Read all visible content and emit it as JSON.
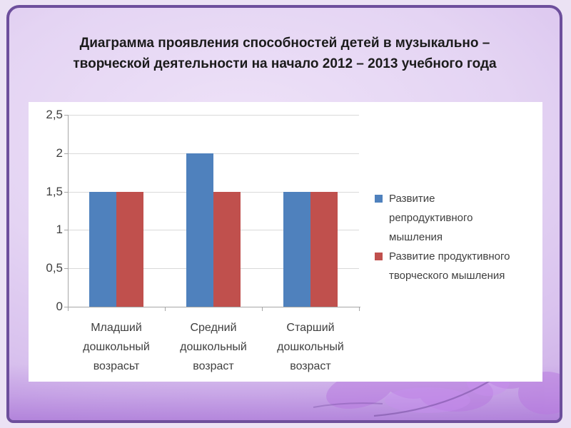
{
  "slide": {
    "title": "Диаграмма проявления способностей детей в музыкально –\nтворческой деятельности на начало 2012 – 2013 учебного года"
  },
  "chart_data": {
    "type": "bar",
    "title": "Диаграмма проявления способностей детей в музыкально – творческой деятельности на начало 2012 – 2013 учебного года",
    "categories": [
      "Младший дошкольный возрасьт",
      "Средний дошкольный возраст",
      "Старший дошкольный возраст"
    ],
    "series": [
      {
        "name": "Развитие\nрепродуктивного\nмышления",
        "color": "#4f81bd",
        "values": [
          1.5,
          2,
          1.5
        ]
      },
      {
        "name": "Развитие продуктивного\nтворческого мышления",
        "color": "#c0504d",
        "values": [
          1.5,
          1.5,
          1.5
        ]
      }
    ],
    "y_ticks": [
      {
        "label": "0",
        "value": 0
      },
      {
        "label": "0,5",
        "value": 0.5
      },
      {
        "label": "1",
        "value": 1
      },
      {
        "label": "1,5",
        "value": 1.5
      },
      {
        "label": "2",
        "value": 2
      },
      {
        "label": "2,5",
        "value": 2.5
      }
    ],
    "ylim": [
      0,
      2.5
    ],
    "grid": true,
    "legend_position": "right",
    "colors": {
      "plot_background": "#ffffff",
      "gridline": "#d9d9d9",
      "axis": "#a6a6a6",
      "text": "#3f3f3f",
      "frame_border": "#6d4f9c",
      "slide_background": "#ddc9f0"
    }
  }
}
